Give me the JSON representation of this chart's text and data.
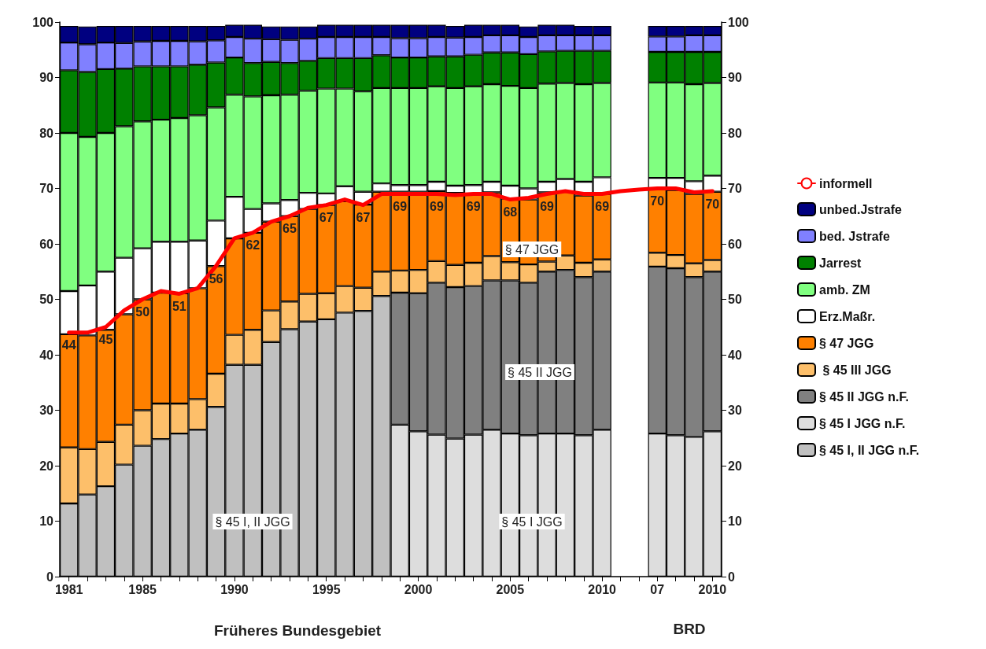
{
  "chart_data": {
    "type": "bar",
    "stacked": true,
    "categories": [
      "1981",
      null,
      null,
      null,
      "1985",
      null,
      null,
      null,
      null,
      "1990",
      null,
      null,
      null,
      null,
      "1995",
      null,
      null,
      null,
      null,
      "2000",
      null,
      null,
      null,
      null,
      "2005",
      null,
      null,
      null,
      null,
      "2010",
      null,
      null,
      "07",
      null,
      null,
      "2010"
    ],
    "ylim": [
      0,
      100
    ],
    "yticks": [
      0,
      10,
      20,
      30,
      40,
      50,
      60,
      70,
      80,
      90,
      100
    ],
    "y2lim": [
      0,
      100
    ],
    "y2ticks": [
      0,
      10,
      20,
      30,
      40,
      50,
      60,
      70,
      80,
      90,
      100
    ],
    "grid": false,
    "legend": "right",
    "annotations": [
      "§ 45 I, II JGG",
      "§ 45 I JGG",
      "§ 45 II JGG",
      "§ 47 JGG",
      "Früheres Bundesgebiet",
      "BRD"
    ],
    "series": [
      {
        "name": "§ 45 I, II JGG n.F.",
        "color": "#c0c0c0",
        "values": [
          13.2,
          14.8,
          16.3,
          20.2,
          23.6,
          24.8,
          25.8,
          26.5,
          30.6,
          38.2,
          38.2,
          42.3,
          44.6,
          46.0,
          46.4,
          47.6,
          47.9,
          50.6,
          null,
          null,
          null,
          null,
          null,
          null,
          null,
          null,
          null,
          null,
          null,
          null,
          null,
          null,
          null,
          null,
          null,
          null
        ]
      },
      {
        "name": "§ 45 I JGG n.F.",
        "color": "#dddddd",
        "values": [
          null,
          null,
          null,
          null,
          null,
          null,
          null,
          null,
          null,
          null,
          null,
          null,
          null,
          null,
          null,
          null,
          null,
          null,
          27.4,
          26.2,
          25.6,
          24.9,
          25.6,
          26.5,
          25.8,
          25.5,
          25.8,
          25.8,
          25.5,
          26.5,
          null,
          null,
          25.8,
          25.5,
          25.2,
          26.2
        ]
      },
      {
        "name": "§ 45 II JGG n.F.",
        "color": "#808080",
        "values": [
          null,
          null,
          null,
          null,
          null,
          null,
          null,
          null,
          null,
          null,
          null,
          null,
          null,
          null,
          null,
          null,
          null,
          null,
          23.8,
          24.9,
          27.4,
          27.3,
          26.8,
          26.9,
          27.6,
          27.5,
          29.2,
          29.5,
          28.5,
          28.5,
          null,
          null,
          30.1,
          30.1,
          28.8,
          28.8
        ]
      },
      {
        "name": " § 45 III JGG",
        "color": "#fdbf6a",
        "values": [
          10.1,
          8.2,
          8.0,
          7.2,
          6.4,
          6.4,
          5.4,
          5.5,
          6.0,
          5.4,
          6.3,
          5.7,
          5.0,
          5.0,
          4.7,
          4.8,
          4.2,
          4.4,
          4.0,
          4.2,
          3.9,
          4.0,
          4.2,
          4.4,
          3.3,
          3.3,
          1.8,
          2.6,
          2.6,
          2.2,
          null,
          null,
          2.5,
          2.4,
          2.5,
          2.1
        ]
      },
      {
        "name": "§ 47 JGG",
        "color": "#ff8000",
        "values": [
          20.4,
          20.5,
          20.2,
          19.9,
          20.0,
          20.0,
          19.9,
          20.0,
          19.4,
          17.4,
          17.5,
          16.0,
          15.4,
          15.3,
          15.9,
          15.3,
          15.0,
          14.4,
          14.2,
          14.1,
          12.6,
          13.0,
          12.4,
          11.5,
          11.5,
          11.7,
          12.5,
          11.5,
          12.1,
          11.8,
          null,
          null,
          11.4,
          11.7,
          12.5,
          12.3
        ]
      },
      {
        "name": "Erz.Maßr.",
        "color": "#ffffff",
        "values": [
          7.8,
          9.0,
          10.5,
          10.2,
          9.2,
          9.2,
          9.3,
          8.6,
          8.2,
          7.5,
          4.3,
          3.3,
          2.9,
          2.9,
          2.1,
          2.7,
          2.3,
          1.5,
          1.2,
          1.2,
          1.7,
          1.3,
          1.6,
          1.9,
          2.3,
          2.0,
          1.9,
          2.3,
          2.5,
          3.0,
          null,
          null,
          2.1,
          2.2,
          2.3,
          2.9
        ]
      },
      {
        "name": "amb. ZM",
        "color": "#80ff80",
        "values": [
          28.5,
          26.8,
          25.0,
          23.7,
          22.9,
          22.0,
          22.3,
          22.6,
          20.4,
          18.4,
          20.3,
          19.5,
          19.0,
          18.4,
          18.9,
          17.6,
          18.1,
          17.2,
          17.5,
          17.5,
          17.2,
          17.6,
          17.8,
          17.6,
          18.0,
          18.1,
          17.7,
          17.3,
          17.6,
          17.0,
          null,
          null,
          17.2,
          17.2,
          17.5,
          16.7
        ]
      },
      {
        "name": "Jarrest",
        "color": "#008000",
        "values": [
          11.3,
          11.7,
          11.5,
          10.4,
          9.9,
          9.6,
          9.3,
          9.1,
          8.1,
          6.7,
          6.0,
          6.0,
          5.7,
          5.4,
          5.5,
          5.5,
          6.0,
          5.9,
          5.5,
          5.5,
          5.4,
          5.7,
          5.7,
          5.7,
          6.0,
          6.1,
          5.8,
          5.8,
          6.0,
          5.8,
          null,
          null,
          5.5,
          5.5,
          5.8,
          5.6
        ]
      },
      {
        "name": "bed. Jstrafe",
        "color": "#8080ff",
        "values": [
          5.0,
          5.0,
          4.8,
          4.6,
          4.5,
          4.6,
          4.6,
          4.2,
          4.0,
          3.7,
          4.4,
          4.1,
          4.2,
          4.0,
          3.8,
          3.8,
          3.8,
          3.3,
          3.5,
          3.5,
          3.5,
          3.4,
          3.2,
          3.1,
          3.1,
          3.1,
          2.9,
          2.8,
          2.8,
          2.8,
          null,
          null,
          2.8,
          2.8,
          3.0,
          3.0
        ]
      },
      {
        "name": "unbed.Jstrafe",
        "color": "#000080",
        "values": [
          3.0,
          3.2,
          3.0,
          3.1,
          2.8,
          2.7,
          2.7,
          2.8,
          2.6,
          2.2,
          2.5,
          2.3,
          2.4,
          2.2,
          2.2,
          2.2,
          2.2,
          2.2,
          2.4,
          2.4,
          2.2,
          2.1,
          2.2,
          1.9,
          1.9,
          1.9,
          1.9,
          1.9,
          1.7,
          1.7,
          null,
          null,
          1.9,
          1.9,
          1.7,
          1.7
        ]
      },
      {
        "name": "informell",
        "type": "line",
        "color": "#ff0000",
        "values": [
          44,
          44,
          45,
          48,
          50,
          51.5,
          51,
          52,
          56,
          61,
          62,
          64,
          65,
          66.5,
          67,
          68,
          67,
          69,
          69,
          69,
          69,
          68.8,
          69,
          69,
          68,
          68.3,
          69,
          69.5,
          69,
          69,
          69.5,
          69.8,
          70,
          70,
          69.3,
          69.5
        ],
        "value_labels": [
          "44",
          null,
          "45",
          null,
          "50",
          null,
          "51",
          null,
          "56",
          null,
          "62",
          null,
          "65",
          null,
          "67",
          null,
          "67",
          null,
          "69",
          null,
          "69",
          null,
          "69",
          null,
          "68",
          null,
          "69",
          null,
          null,
          "69",
          null,
          null,
          "70",
          null,
          null,
          "70"
        ]
      }
    ]
  }
}
